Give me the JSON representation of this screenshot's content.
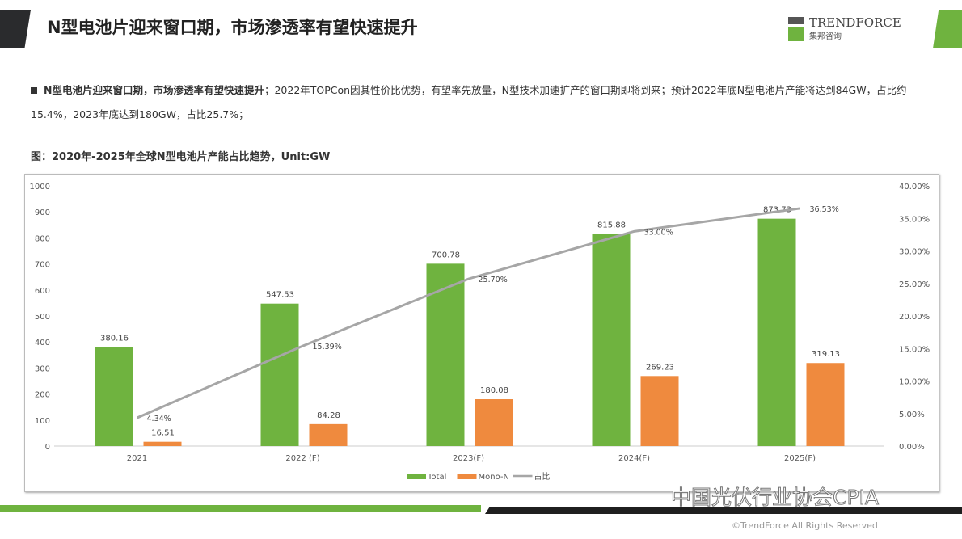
{
  "header": {
    "title": "N型电池片迎来窗口期，市场渗透率有望快速提升",
    "logo_en": "TRENDFORCE",
    "logo_cn": "集邦咨询"
  },
  "bullet": {
    "lead": "N型电池片迎来窗口期，市场渗透率有望快速提升",
    "text": "；2022年TOPCon因其性价比优势，有望率先放量，N型技术加速扩产的窗口期即将到来；预计2022年底N型电池片产能将达到84GW，占比约15.4%，2023年底达到180GW，占比25.7%；"
  },
  "chart_data": {
    "type": "bar",
    "title": "图：2020年-2025年全球N型电池片产能占比趋势，Unit:GW",
    "categories": [
      "2021",
      "2022 (F)",
      "2023(F)",
      "2024(F)",
      "2025(F)"
    ],
    "series": [
      {
        "name": "Total",
        "type": "bar",
        "axis": "left",
        "color": "#6fb33f",
        "values": [
          380.16,
          547.53,
          700.78,
          815.88,
          873.73
        ],
        "labels": [
          "380.16",
          "547.53",
          "700.78",
          "815.88",
          "873.73"
        ]
      },
      {
        "name": "Mono-N",
        "type": "bar",
        "axis": "left",
        "color": "#ef8a3e",
        "values": [
          16.51,
          84.28,
          180.08,
          269.23,
          319.13
        ],
        "labels": [
          "16.51",
          "84.28",
          "180.08",
          "269.23",
          "319.13"
        ]
      },
      {
        "name": "占比",
        "type": "line",
        "axis": "right",
        "color": "#a6a6a6",
        "values": [
          4.34,
          15.39,
          25.7,
          33.0,
          36.53
        ],
        "labels": [
          "4.34%",
          "15.39%",
          "25.70%",
          "33.00%",
          "36.53%"
        ]
      }
    ],
    "yleft": {
      "range": [
        0,
        1000
      ],
      "ticks": [
        "0",
        "100",
        "200",
        "300",
        "400",
        "500",
        "600",
        "700",
        "800",
        "900",
        "1000"
      ]
    },
    "yright": {
      "range": [
        0,
        40
      ],
      "ticks": [
        "0.00%",
        "5.00%",
        "10.00%",
        "15.00%",
        "20.00%",
        "25.00%",
        "30.00%",
        "35.00%",
        "40.00%"
      ]
    },
    "legend_position": "bottom",
    "grid": false
  },
  "footer": {
    "watermark": "中国光伏行业协会CPIA",
    "copyright": "©TrendForce All Rights Reserved"
  }
}
